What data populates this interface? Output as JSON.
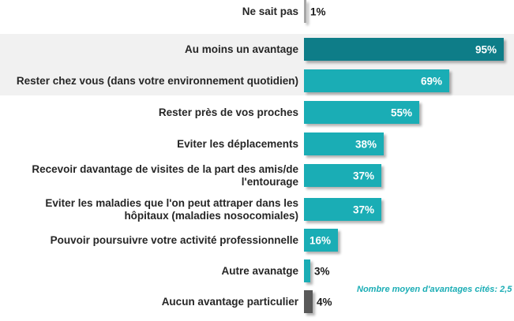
{
  "chart_data": {
    "type": "bar",
    "orientation": "horizontal",
    "unit": "%",
    "xlim": [
      0,
      100
    ],
    "grid": false,
    "legend": false,
    "annotation": "Nombre moyen d'avantages cités: 2,5",
    "colors": {
      "teal_dark": "#0e7d88",
      "teal": "#1aadb5",
      "gray_dark": "#595959",
      "gray_light": "#a6a6a6",
      "highlight_band": "#f1f1f1",
      "value_label_inside": "#ffffff",
      "value_label_outside": "#1a1a1a",
      "category_label": "#262626"
    },
    "rows": [
      {
        "label": "Au moins un avantage",
        "value": 95,
        "value_label": "95%",
        "color": "teal_dark",
        "label_inside": true
      },
      {
        "label": "Rester chez vous (dans votre environnement quotidien)",
        "value": 69,
        "value_label": "69%",
        "color": "teal",
        "label_inside": true
      },
      {
        "label": "Rester près de vos proches",
        "value": 55,
        "value_label": "55%",
        "color": "teal",
        "label_inside": true
      },
      {
        "label": "Eviter les déplacements",
        "value": 38,
        "value_label": "38%",
        "color": "teal",
        "label_inside": true
      },
      {
        "label": "Recevoir davantage de visites de la part des amis/de l'entourage",
        "value": 37,
        "value_label": "37%",
        "color": "teal",
        "label_inside": true
      },
      {
        "label": "Eviter les maladies que l'on peut attraper dans les hôpitaux (maladies nosocomiales)",
        "value": 37,
        "value_label": "37%",
        "color": "teal",
        "label_inside": true
      },
      {
        "label": "Pouvoir poursuivre votre activité professionnelle",
        "value": 16,
        "value_label": "16%",
        "color": "teal",
        "label_inside": true
      },
      {
        "label": "Autre avanatge",
        "value": 3,
        "value_label": "3%",
        "color": "teal",
        "label_inside": false
      },
      {
        "label": "Aucun avantage particulier",
        "value": 4,
        "value_label": "4%",
        "color": "gray_dark",
        "label_inside": false
      },
      {
        "label": "Ne sait pas",
        "value": 1,
        "value_label": "1%",
        "color": "gray_light",
        "label_inside": false
      }
    ],
    "highlight_band_row_indexes": [
      1,
      2
    ]
  }
}
